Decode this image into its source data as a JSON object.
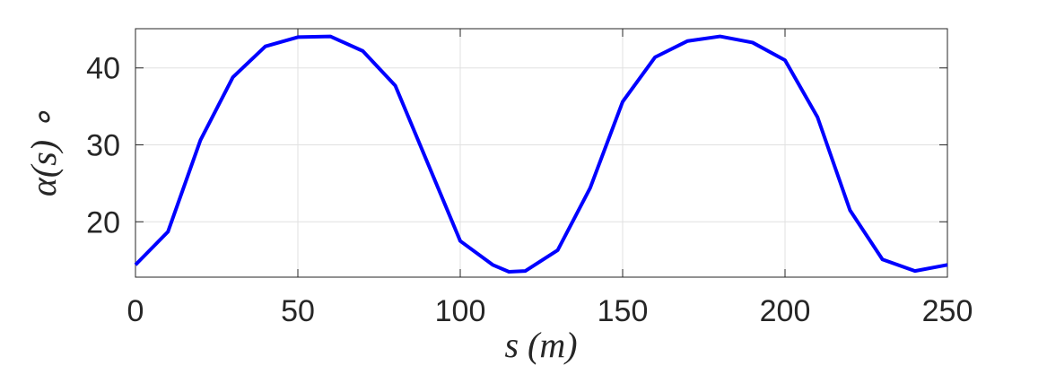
{
  "chart_data": {
    "type": "line",
    "x_label": "s (m)",
    "y_label": "α(s) ∘",
    "x": [
      0,
      10,
      20,
      30,
      40,
      50,
      60,
      70,
      80,
      90,
      100,
      110,
      115,
      120,
      130,
      140,
      150,
      160,
      170,
      180,
      190,
      200,
      210,
      220,
      230,
      240,
      250
    ],
    "series": [
      {
        "color": "#0000ff",
        "values": [
          14.4,
          18.7,
          30.6,
          38.8,
          42.8,
          44.0,
          44.1,
          42.2,
          37.7,
          27.6,
          17.5,
          14.4,
          13.5,
          13.6,
          16.3,
          24.4,
          35.6,
          41.4,
          43.5,
          44.1,
          43.3,
          41.0,
          33.6,
          21.5,
          15.1,
          13.6,
          14.4
        ]
      }
    ],
    "xlim": [
      0,
      250
    ],
    "xticks": [
      0,
      50,
      100,
      150,
      200,
      250
    ],
    "ylim": [
      12.8,
      45.1
    ],
    "yticks": [
      20,
      30,
      40
    ],
    "grid": true
  }
}
